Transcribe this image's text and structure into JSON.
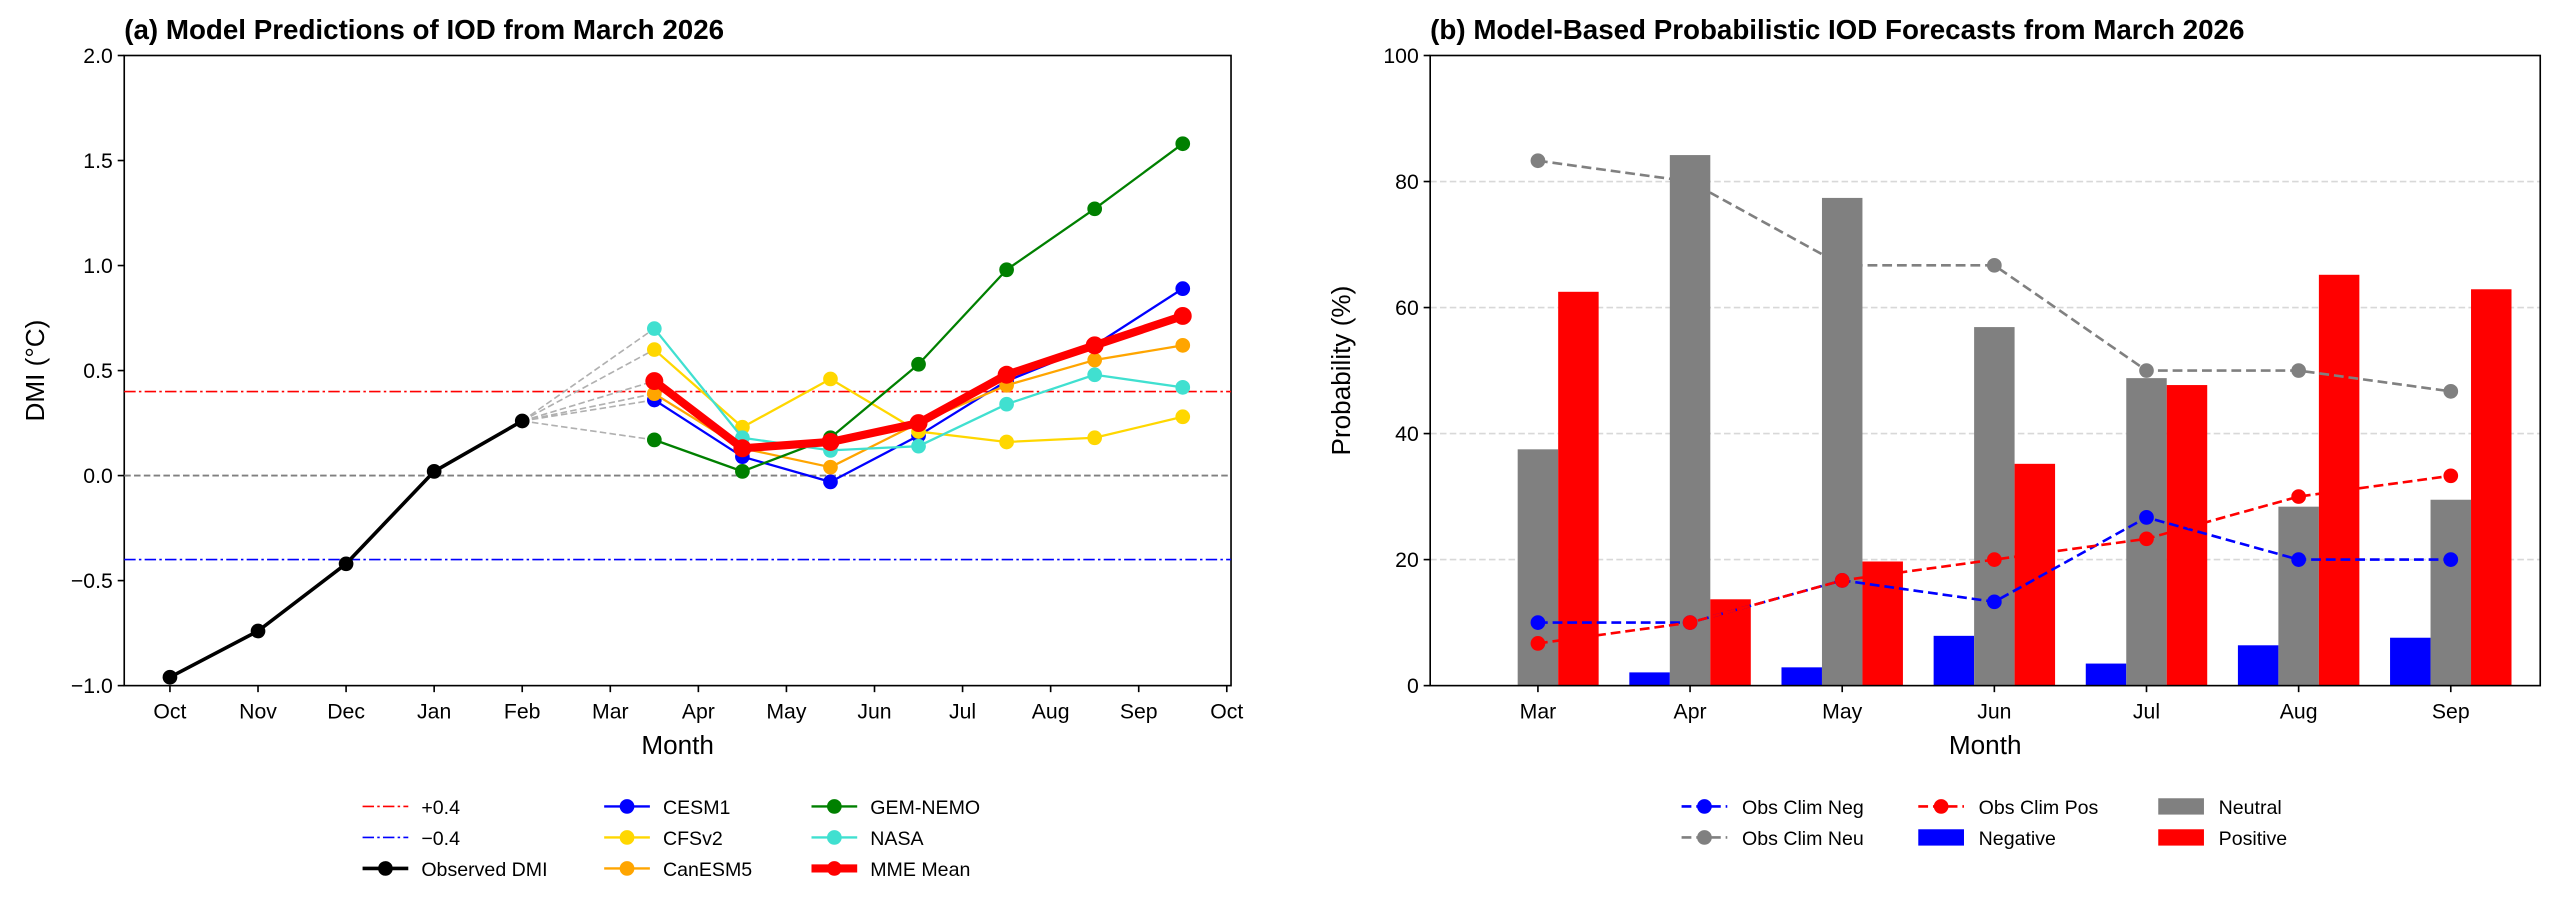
{
  "chart_data": [
    {
      "type": "line",
      "title": "(a) Model Predictions of IOD from March 2026",
      "xlabel": "Month",
      "ylabel": "DMI (°C)",
      "ylim": [
        -1.0,
        2.0
      ],
      "yticks": [
        "−1.0",
        "−0.5",
        "0.0",
        "0.5",
        "1.0",
        "1.5",
        "2.0"
      ],
      "xticks": [
        "Oct",
        "Nov",
        "Dec",
        "Jan",
        "Feb",
        "Mar",
        "Apr",
        "May",
        "Jun",
        "Jul",
        "Aug",
        "Sep",
        "Oct"
      ],
      "grid": false,
      "legend_placement": "bottom",
      "thresholds": [
        {
          "name": "+0.4",
          "value": 0.4,
          "color": "#ff0000"
        },
        {
          "name": "−0.4",
          "value": -0.4,
          "color": "#0000ff"
        }
      ],
      "zero_line": 0.0,
      "observed": {
        "name": "Observed DMI",
        "color": "#000000",
        "x": [
          "Oct",
          "Nov",
          "Dec",
          "Jan",
          "Feb"
        ],
        "values": [
          -0.96,
          -0.74,
          -0.42,
          0.02,
          0.26
        ]
      },
      "forecast_months": [
        "Mar",
        "Apr",
        "May",
        "Jun",
        "Jul",
        "Aug",
        "Sep"
      ],
      "series": [
        {
          "name": "CESM1",
          "color": "#0000ff",
          "values": [
            0.36,
            0.09,
            -0.03,
            0.19,
            0.45,
            0.62,
            0.89
          ]
        },
        {
          "name": "CFSv2",
          "color": "#ffd700",
          "values": [
            0.6,
            0.23,
            0.46,
            0.21,
            0.16,
            0.18,
            0.28
          ]
        },
        {
          "name": "CanESM5",
          "color": "#ffa500",
          "values": [
            0.39,
            0.13,
            0.04,
            0.25,
            0.43,
            0.55,
            0.62
          ]
        },
        {
          "name": "GEM-NEMO",
          "color": "#008000",
          "values": [
            0.17,
            0.02,
            0.18,
            0.53,
            0.98,
            1.27,
            1.58
          ]
        },
        {
          "name": "NASA",
          "color": "#40e0d0",
          "values": [
            0.7,
            0.18,
            0.12,
            0.14,
            0.34,
            0.48,
            0.42
          ]
        },
        {
          "name": "MME Mean",
          "color": "#ff0000",
          "values": [
            0.45,
            0.13,
            0.16,
            0.25,
            0.48,
            0.62,
            0.76
          ]
        }
      ]
    },
    {
      "type": "bar",
      "title": "(b) Model-Based Probabilistic IOD Forecasts from March 2026",
      "xlabel": "Month",
      "ylabel": "Probability (%)",
      "ylim": [
        0,
        100
      ],
      "yticks": [
        "0",
        "20",
        "40",
        "60",
        "80",
        "100"
      ],
      "grid": true,
      "legend_placement": "bottom",
      "categories": [
        "Mar",
        "Apr",
        "May",
        "Jun",
        "Jul",
        "Aug",
        "Sep"
      ],
      "bars": [
        {
          "name": "Negative",
          "color": "#0000ff",
          "values": [
            0,
            2.1,
            2.9,
            7.9,
            3.5,
            6.4,
            7.6
          ]
        },
        {
          "name": "Neutral",
          "color": "#808080",
          "values": [
            37.5,
            84.2,
            77.4,
            56.9,
            48.8,
            28.4,
            29.5
          ]
        },
        {
          "name": "Positive",
          "color": "#ff0000",
          "values": [
            62.5,
            13.7,
            19.7,
            35.2,
            47.7,
            65.2,
            62.9
          ]
        }
      ],
      "lines": [
        {
          "name": "Obs Clim Neg",
          "color": "#0000ff",
          "values": [
            10,
            10,
            16.7,
            13.3,
            26.7,
            20,
            20
          ]
        },
        {
          "name": "Obs Clim Neu",
          "color": "#808080",
          "values": [
            83.3,
            80,
            66.7,
            66.7,
            50,
            50,
            46.7
          ]
        },
        {
          "name": "Obs Clim Pos",
          "color": "#ff0000",
          "values": [
            6.7,
            10,
            16.7,
            20,
            23.3,
            30,
            33.3
          ]
        }
      ]
    }
  ]
}
